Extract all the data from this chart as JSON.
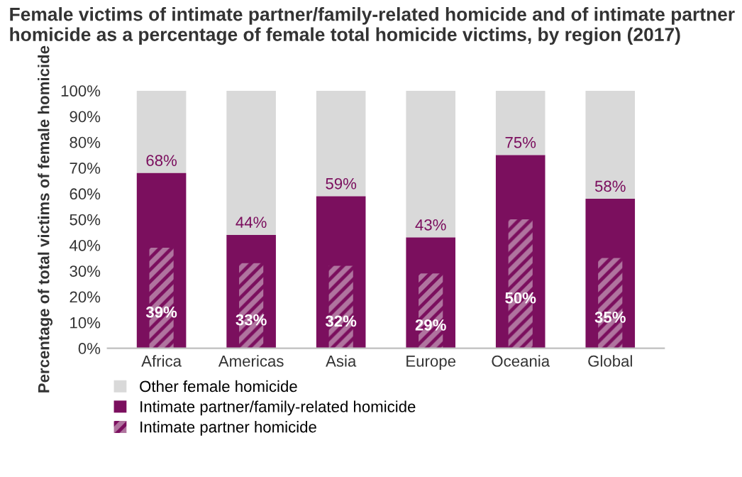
{
  "chart_data": {
    "type": "bar",
    "title": "Female victims of intimate partner/family-related homicide and of intimate partner homicide as a percentage of female total homicide victims, by region (2017)",
    "ylabel": "Percentage of total victims of female homicide",
    "categories": [
      "Africa",
      "Americas",
      "Asia",
      "Europe",
      "Oceania",
      "Global"
    ],
    "series": [
      {
        "name": "Other female homicide",
        "color": "#d9d9d9",
        "base": [
          68,
          44,
          59,
          43,
          75,
          58
        ],
        "values": [
          32,
          56,
          41,
          57,
          25,
          42
        ]
      },
      {
        "name": "Intimate partner/family-related homicide",
        "color": "#7b0f5e",
        "values": [
          68,
          44,
          59,
          43,
          75,
          58
        ],
        "value_labels": [
          "68%",
          "44%",
          "59%",
          "43%",
          "75%",
          "58%"
        ]
      },
      {
        "name": "Intimate partner homicide",
        "color": "#b0749f",
        "values": [
          39,
          33,
          32,
          29,
          50,
          35
        ],
        "value_labels": [
          "39%",
          "33%",
          "32%",
          "29%",
          "50%",
          "35%"
        ]
      }
    ],
    "ylim": [
      0,
      100
    ],
    "yticks": [
      {
        "value": 0,
        "label": "0%"
      },
      {
        "value": 10,
        "label": "10%"
      },
      {
        "value": 20,
        "label": "20%"
      },
      {
        "value": 30,
        "label": "30%"
      },
      {
        "value": 40,
        "label": "40%"
      },
      {
        "value": 50,
        "label": "50%"
      },
      {
        "value": 60,
        "label": "60%"
      },
      {
        "value": 70,
        "label": "70%"
      },
      {
        "value": 80,
        "label": "80%"
      },
      {
        "value": 90,
        "label": "90%"
      },
      {
        "value": 100,
        "label": "100%"
      }
    ],
    "grid": false,
    "legend": "bottom left"
  }
}
